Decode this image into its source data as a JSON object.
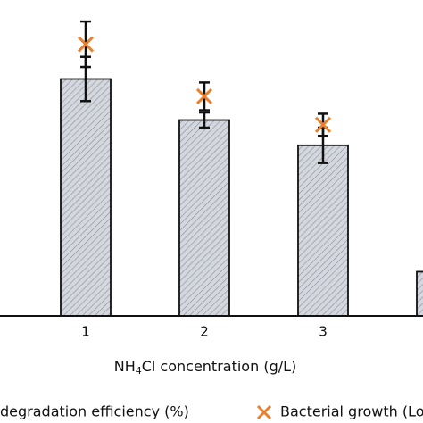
{
  "chart_data": {
    "type": "bar",
    "x_label": [
      "NH",
      "4",
      "Cl concentration (g/L)"
    ],
    "categories": [
      "1",
      "2",
      "3",
      null
    ],
    "ylim": [
      0,
      100
    ],
    "y2lim": [
      0,
      10
    ],
    "series": [
      {
        "name": "degradation efficiency (%)",
        "color": "#cfd2d9",
        "values": [
          75,
          62,
          54,
          14
        ],
        "errors": [
          7,
          2.4,
          5.6,
          null
        ]
      },
      {
        "name": "Bacterial growth (Lo",
        "color": "#e8812f",
        "axis": "y2",
        "marker": "x",
        "values": [
          8.6,
          6.95,
          6.05,
          null
        ],
        "errors": [
          0.72,
          0.44,
          0.35,
          null
        ]
      }
    ]
  }
}
